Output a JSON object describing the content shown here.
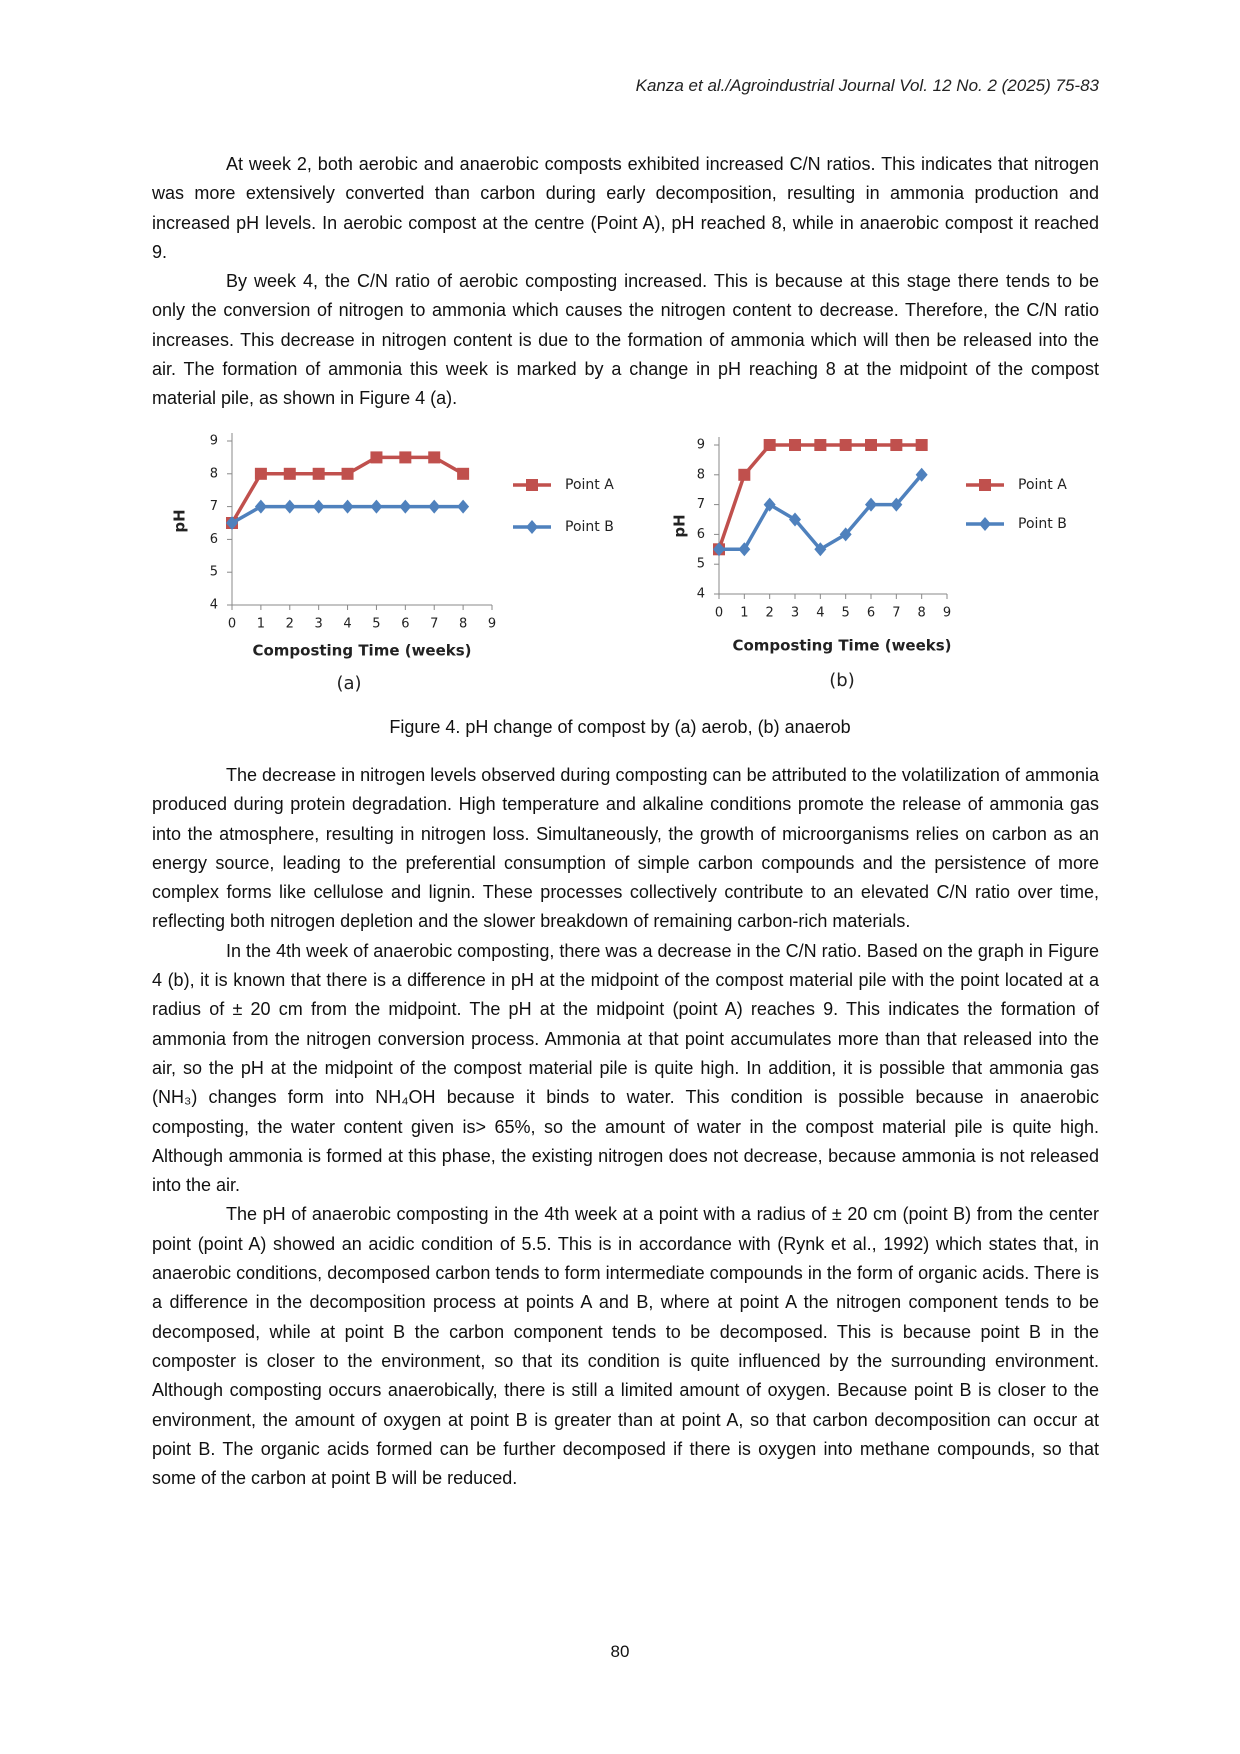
{
  "document": {
    "header": "Kanza et al./Agroindustrial Journal Vol. 12 No. 2 (2025) 75-83",
    "paragraphs": [
      "At week 2, both aerobic and anaerobic composts exhibited increased C/N ratios. This indicates that nitrogen was more extensively converted than carbon during early decomposition, resulting in ammonia production and increased pH levels. In aerobic compost at the centre (Point A), pH reached 8, while in anaerobic compost it reached 9.",
      "By week 4, the C/N ratio of aerobic composting increased. This is because at this stage there tends to be only the conversion of nitrogen to ammonia which causes the nitrogen content to decrease. Therefore, the C/N ratio increases. This decrease in nitrogen content is due to the formation of ammonia which will then be released into the air. The formation of ammonia this week is marked by a change in pH reaching 8 at the midpoint of the compost material pile, as shown in Figure 4 (a).",
      "The decrease in nitrogen levels observed during composting can be attributed to the volatilization of ammonia produced during protein degradation. High temperature and alkaline conditions promote the release of ammonia gas into the atmosphere, resulting in nitrogen loss. Simultaneously, the growth of microorganisms relies on carbon as an energy source, leading to the preferential consumption of simple carbon compounds and the persistence of more complex forms like cellulose and lignin. These processes collectively contribute to an elevated C/N ratio over time, reflecting both nitrogen depletion and the slower breakdown of remaining carbon-rich materials.",
      "In the 4th week of anaerobic composting, there was a decrease in the C/N ratio. Based on the graph in Figure 4 (b), it is known that there is a difference in pH at the midpoint of the compost material pile with the point located at a radius of ± 20 cm from the midpoint. The pH at the midpoint (point A) reaches 9. This indicates the formation of ammonia from the nitrogen conversion process. Ammonia at that point accumulates more than that released into the air, so the pH at the midpoint of the compost material pile is quite high. In addition, it is possible that ammonia gas (NH₃) changes form into NH₄OH because it binds to water. This condition is possible because in anaerobic composting, the water content given is> 65%, so the amount of water in the compost material pile is quite high. Although ammonia is formed at this phase, the existing nitrogen does not decrease, because ammonia is not released into the air.",
      "The pH of anaerobic composting in the 4th week at a point with a radius of ± 20 cm (point B) from the center point (point A) showed an acidic condition of 5.5. This is in accordance with (Rynk et al., 1992) which states that, in anaerobic conditions, decomposed carbon tends to form intermediate compounds in the form of organic acids. There is a difference in the decomposition process at points A and B, where at point A the nitrogen component tends to be decomposed, while at point B the carbon component tends to be decomposed. This is because point B in the composter is closer to the environment, so that its condition is quite influenced by the surrounding environment. Although composting occurs anaerobically, there is still a limited amount of oxygen. Because point B is closer to the environment, the amount of oxygen at point B is greater than at point A, so that carbon decomposition can occur at point B. The organic acids formed can be further decomposed if there is oxygen into methane compounds, so that some of the carbon at point B will be reduced."
    ],
    "figure_caption": "Figure 4. pH change of compost by (a) aerob, (b) anaerob",
    "page_number": "80"
  },
  "chart_data": [
    {
      "type": "line",
      "panel_label": "(a)",
      "x_label": "Composting Time (weeks)",
      "y_label": "pH",
      "x": [
        0,
        1,
        2,
        3,
        4,
        5,
        6,
        7,
        8
      ],
      "xlim": [
        0,
        9
      ],
      "xticks": [
        0,
        1,
        2,
        3,
        4,
        5,
        6,
        7,
        8,
        9
      ],
      "ylim": [
        4,
        9
      ],
      "yticks": [
        4,
        5,
        6,
        7,
        8,
        9
      ],
      "grid": false,
      "legend": "right",
      "series": [
        {
          "name": "Point A",
          "color": "#c0504d",
          "marker": "square",
          "values": [
            6.5,
            8,
            8,
            8,
            8,
            8.5,
            8.5,
            8.5,
            8
          ]
        },
        {
          "name": "Point B",
          "color": "#4f81bd",
          "marker": "diamond",
          "values": [
            6.5,
            7,
            7,
            7,
            7,
            7,
            7,
            7,
            7
          ]
        }
      ]
    },
    {
      "type": "line",
      "panel_label": "(b)",
      "x_label": "Composting Time (weeks)",
      "y_label": "pH",
      "x": [
        0,
        1,
        2,
        3,
        4,
        5,
        6,
        7,
        8
      ],
      "xlim": [
        0,
        9
      ],
      "xticks": [
        0,
        1,
        2,
        3,
        4,
        5,
        6,
        7,
        8,
        9
      ],
      "ylim": [
        4,
        9
      ],
      "yticks": [
        4,
        5,
        6,
        7,
        8,
        9
      ],
      "grid": false,
      "legend": "right",
      "series": [
        {
          "name": "Point A",
          "color": "#c0504d",
          "marker": "square",
          "values": [
            5.5,
            8,
            9,
            9,
            9,
            9,
            9,
            9,
            9
          ]
        },
        {
          "name": "Point B",
          "color": "#4f81bd",
          "marker": "diamond",
          "values": [
            5.5,
            5.5,
            7,
            6.5,
            5.5,
            6,
            7,
            7,
            8
          ]
        }
      ]
    }
  ]
}
